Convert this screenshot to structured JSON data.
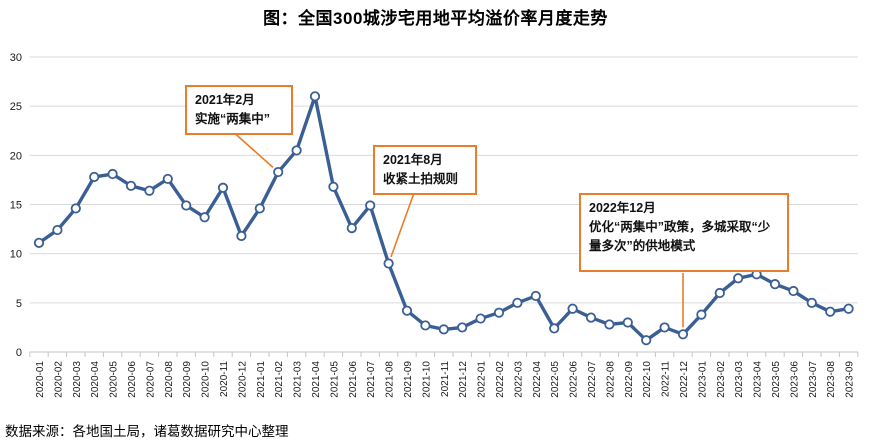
{
  "title": "图：全国300城涉宅用地平均溢价率月度走势",
  "footer": "数据来源：各地国土局，诸葛数据研究中心整理",
  "chart_data": {
    "type": "line",
    "title": "图：全国300城涉宅用地平均溢价率月度走势",
    "xlabel": "",
    "ylabel": "",
    "ylim": [
      0,
      30
    ],
    "ytick_interval": 5,
    "yticks": [
      0,
      5,
      10,
      15,
      20,
      25,
      30
    ],
    "grid": "horizontal",
    "legend": "none",
    "line_color": "#3A5F94",
    "marker_style": "circle-white-fill",
    "gridline_color": "#DADADA",
    "accent_color": "#E87D2B",
    "x": [
      "2020-01",
      "2020-02",
      "2020-03",
      "2020-04",
      "2020-05",
      "2020-06",
      "2020-07",
      "2020-08",
      "2020-09",
      "2020-10",
      "2020-11",
      "2020-12",
      "2021-01",
      "2021-02",
      "2021-03",
      "2021-04",
      "2021-05",
      "2021-06",
      "2021-07",
      "2021-08",
      "2021-09",
      "2021-10",
      "2021-11",
      "2021-12",
      "2022-01",
      "2022-02",
      "2022-03",
      "2022-04",
      "2022-05",
      "2022-06",
      "2022-07",
      "2022-08",
      "2022-09",
      "2022-10",
      "2022-11",
      "2022-12",
      "2023-01",
      "2023-02",
      "2023-03",
      "2023-04",
      "2023-05",
      "2023-06",
      "2023-07",
      "2023-08",
      "2023-09"
    ],
    "values": [
      11.1,
      12.4,
      14.6,
      17.8,
      18.1,
      16.9,
      16.4,
      17.6,
      14.9,
      13.7,
      16.7,
      11.8,
      14.6,
      18.3,
      20.5,
      26.0,
      16.8,
      12.6,
      14.9,
      9.0,
      4.2,
      2.7,
      2.3,
      2.5,
      3.4,
      4.0,
      5.0,
      5.7,
      2.4,
      4.4,
      3.5,
      2.8,
      3.0,
      1.2,
      2.5,
      1.8,
      3.8,
      6.0,
      7.5,
      7.9,
      6.9,
      6.2,
      5.0,
      4.1,
      4.4
    ],
    "annotations": [
      {
        "target": "2021-02",
        "lines": [
          "2021年2月",
          "实施“两集中”"
        ]
      },
      {
        "target": "2021-08",
        "lines": [
          "2021年8月",
          "收紧土拍规则"
        ]
      },
      {
        "target": "2022-12",
        "lines": [
          "2022年12月",
          "优化“两集中”政策，多城采取“少量多次”的供地模式"
        ]
      }
    ]
  }
}
